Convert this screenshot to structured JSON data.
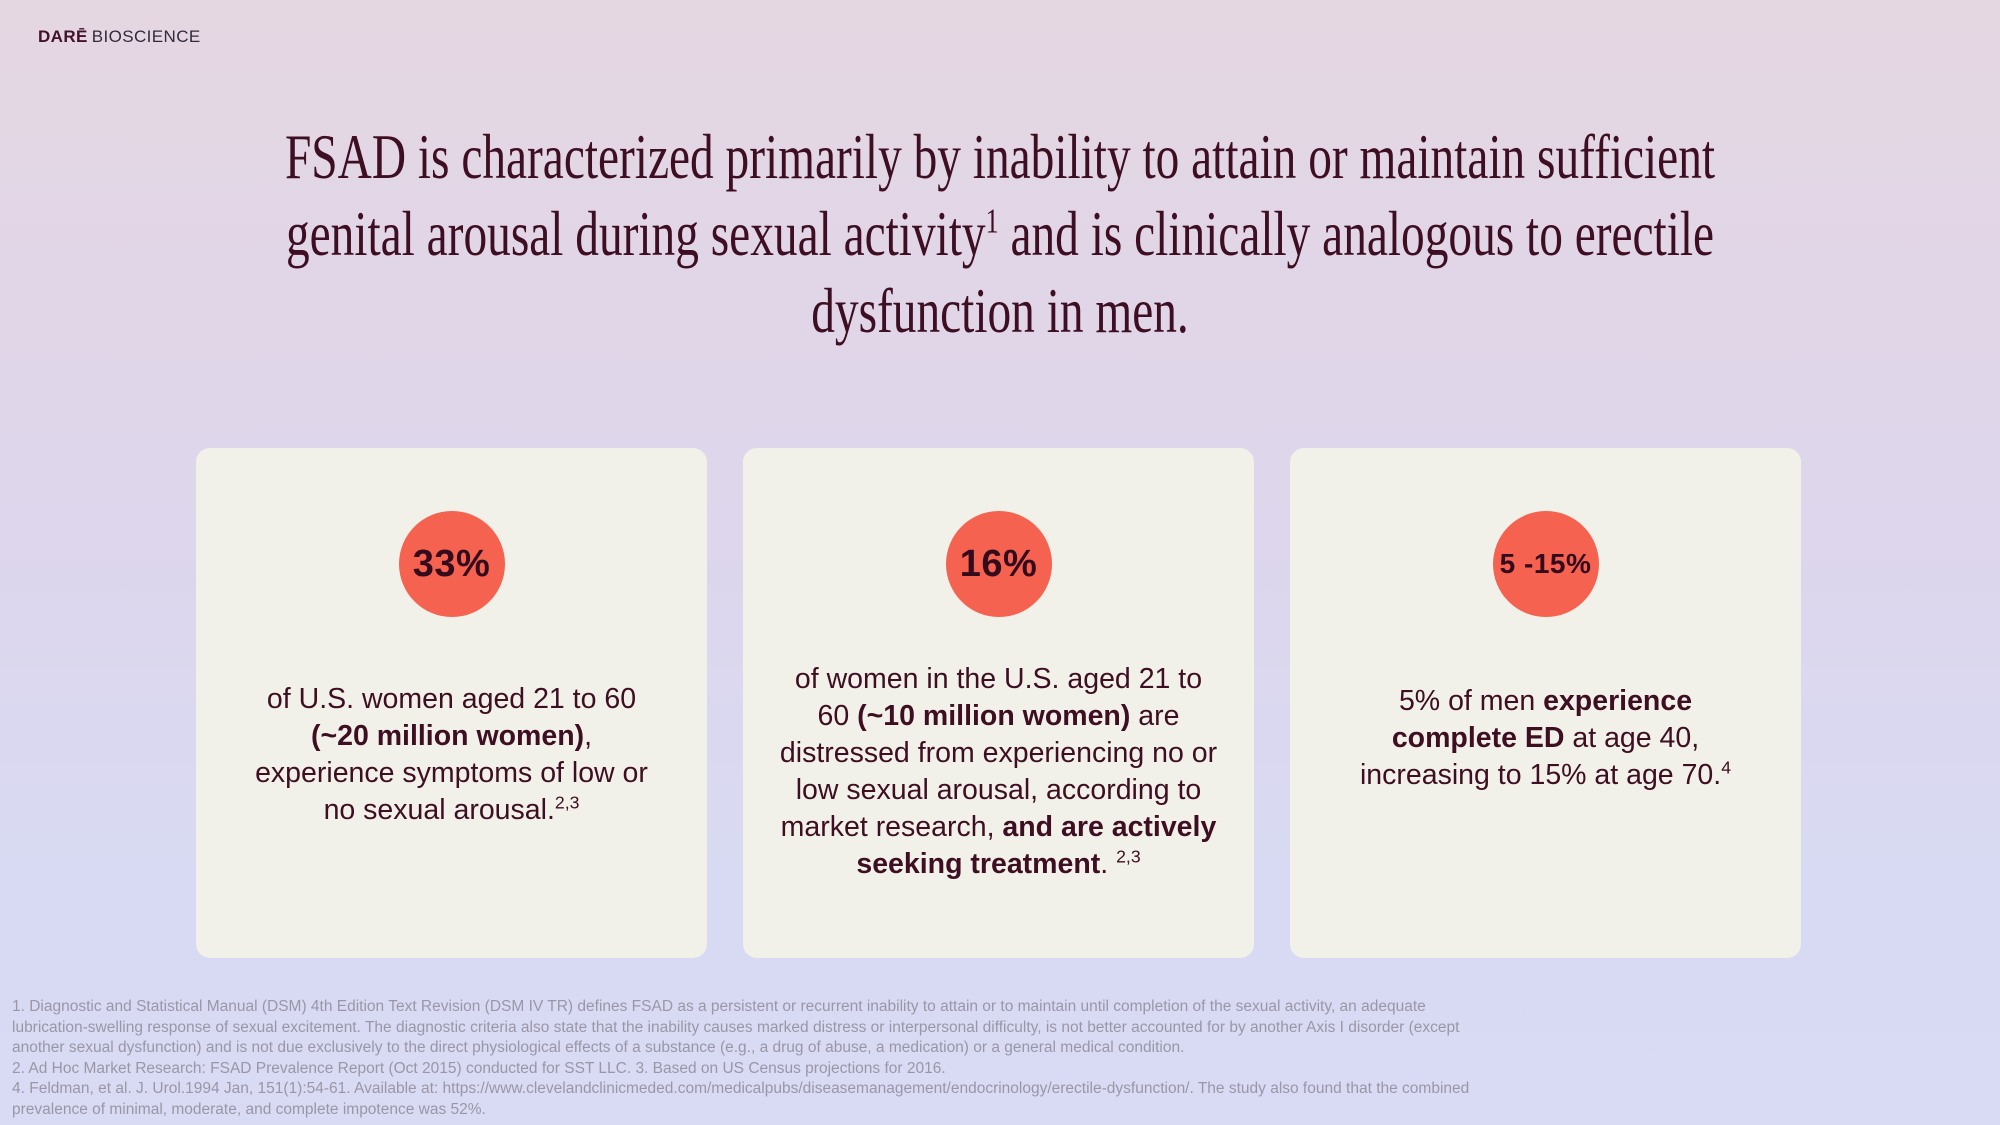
{
  "logo": {
    "brand": "DARĒ",
    "suffix": "BIOSCIENCE"
  },
  "title": {
    "lines": [
      [
        {
          "t": "FSAD is characterized primarily by inability to attain or maintain sufficient"
        }
      ],
      [
        {
          "t": "genital arousal during sexual activity"
        },
        {
          "t": "1",
          "sup": true
        },
        {
          "t": " and is clinically analogous to erectile"
        }
      ],
      [
        {
          "t": "dysfunction in men."
        }
      ]
    ]
  },
  "cards": [
    {
      "stat": "33%",
      "body_lines": [
        [
          {
            "t": "of U.S. women aged 21 to 60"
          }
        ],
        [
          {
            "t": "(~20 million women)",
            "b": true
          },
          {
            "t": ","
          }
        ],
        [
          {
            "t": "experience symptoms of low or"
          }
        ],
        [
          {
            "t": "no sexual arousal."
          },
          {
            "t": "2,3",
            "sup": true
          }
        ]
      ]
    },
    {
      "stat": "16%",
      "body_lines": [
        [
          {
            "t": "of women in the U.S. aged 21 to"
          }
        ],
        [
          {
            "t": "60 "
          },
          {
            "t": "(~10 million women)",
            "b": true
          },
          {
            "t": " are"
          }
        ],
        [
          {
            "t": "distressed from experiencing no or"
          }
        ],
        [
          {
            "t": "low sexual arousal, according to"
          }
        ],
        [
          {
            "t": "market research, "
          },
          {
            "t": "and are actively",
            "b": true
          }
        ],
        [
          {
            "t": "seeking treatment",
            "b": true
          },
          {
            "t": ". "
          },
          {
            "t": "2,3",
            "sup": true
          }
        ]
      ]
    },
    {
      "stat": "5 -15%",
      "body_lines": [
        [
          {
            "t": "5% of men "
          },
          {
            "t": "experience",
            "b": true
          }
        ],
        [
          {
            "t": "complete ED",
            "b": true
          },
          {
            "t": " at age 40,"
          }
        ],
        [
          {
            "t": "increasing to 15% at age 70."
          },
          {
            "t": "4",
            "sup": true
          }
        ]
      ]
    }
  ],
  "footnotes": {
    "lines": [
      "1.  Diagnostic and Statistical Manual (DSM) 4th Edition Text Revision (DSM IV TR) defines FSAD as a persistent or recurrent inability to attain or to maintain until completion of the sexual activity, an adequate",
      "lubrication-swelling response of sexual excitement. The diagnostic criteria also state that the inability causes marked distress or interpersonal difficulty, is not better accounted for by another Axis I disorder (except",
      "another sexual dysfunction) and is not due exclusively to the direct physiological effects of a substance (e.g., a drug of abuse, a medication) or a general medical condition.",
      "2. Ad Hoc Market Research: FSAD Prevalence Report (Oct 2015) conducted for SST LLC.  3. Based on US Census projections for 2016.",
      "4. Feldman, et al. J. Urol.1994 Jan, 151(1):54-61.  Available at: https://www.clevelandclinicmeded.com/medicalpubs/diseasemanagement/endocrinology/erectile-dysfunction/. The study also found that the combined",
      "prevalence of minimal, moderate, and complete impotence was 52%."
    ]
  },
  "colors": {
    "background_top": "#e5d7e2",
    "background_bottom": "#d9dbf4",
    "card_background": "#f1f1e9",
    "stat_circle": "#f66250",
    "dark_text": "#3e0e22",
    "footnote_text": "#9a96a8"
  }
}
